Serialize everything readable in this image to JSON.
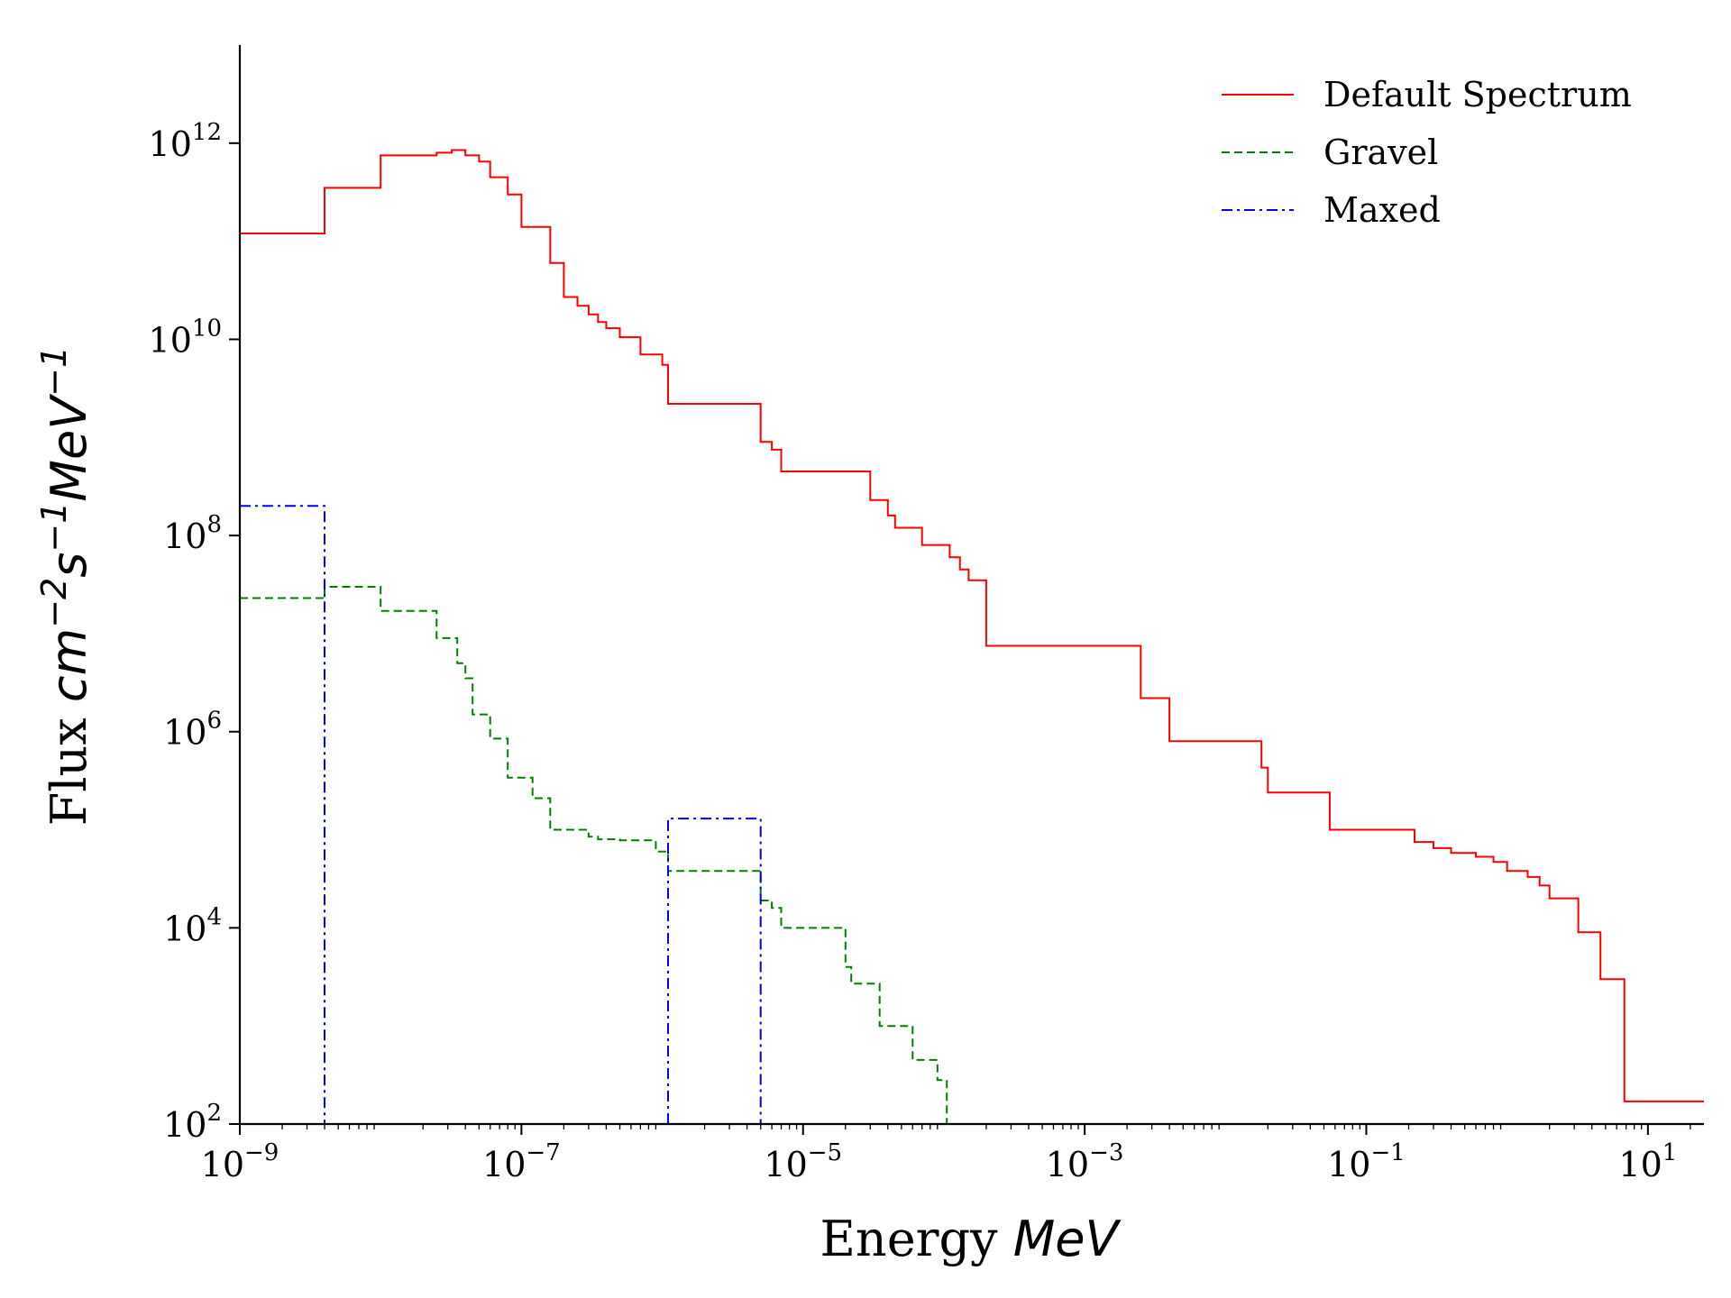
{
  "chart_data": {
    "type": "line",
    "xscale": "log",
    "yscale": "log",
    "xlim": [
      1e-09,
      25
    ],
    "ylim": [
      100,
      10000000000000.0
    ],
    "xlabel": {
      "text": "Energy ",
      "unit": "MeV"
    },
    "ylabel": {
      "text": "Flux ",
      "unit_parts": [
        [
          "cm",
          ""
        ],
        [
          "−2",
          "sup"
        ],
        [
          "s",
          ""
        ],
        [
          "−1",
          "sup"
        ],
        [
          "MeV",
          ""
        ],
        [
          "−1",
          "sup"
        ]
      ]
    },
    "x_ticks": [
      {
        "value": 1e-09,
        "base": "10",
        "exp": "−9"
      },
      {
        "value": 1e-07,
        "base": "10",
        "exp": "−7"
      },
      {
        "value": 1e-05,
        "base": "10",
        "exp": "−5"
      },
      {
        "value": 0.001,
        "base": "10",
        "exp": "−3"
      },
      {
        "value": 0.1,
        "base": "10",
        "exp": "−1"
      },
      {
        "value": 10,
        "base": "10",
        "exp": "1"
      }
    ],
    "y_ticks": [
      {
        "value": 100.0,
        "base": "10",
        "exp": "2"
      },
      {
        "value": 10000.0,
        "base": "10",
        "exp": "4"
      },
      {
        "value": 1000000.0,
        "base": "10",
        "exp": "6"
      },
      {
        "value": 100000000.0,
        "base": "10",
        "exp": "8"
      },
      {
        "value": 10000000000.0,
        "base": "10",
        "exp": "10"
      },
      {
        "value": 1000000000000.0,
        "base": "10",
        "exp": "12"
      }
    ],
    "legend_position": "top-right",
    "series": [
      {
        "name": "Default Spectrum",
        "color": "#ff0000",
        "dash": "solid",
        "points": [
          [
            1e-09,
            120000000000.0
          ],
          [
            4e-09,
            120000000000.0
          ],
          [
            4e-09,
            350000000000.0
          ],
          [
            1e-08,
            350000000000.0
          ],
          [
            1e-08,
            750000000000.0
          ],
          [
            2.5e-08,
            750000000000.0
          ],
          [
            2.5e-08,
            800000000000.0
          ],
          [
            3.2e-08,
            800000000000.0
          ],
          [
            3.2e-08,
            850000000000.0
          ],
          [
            4e-08,
            850000000000.0
          ],
          [
            4e-08,
            750000000000.0
          ],
          [
            5e-08,
            750000000000.0
          ],
          [
            5e-08,
            650000000000.0
          ],
          [
            6e-08,
            650000000000.0
          ],
          [
            6e-08,
            450000000000.0
          ],
          [
            8e-08,
            450000000000.0
          ],
          [
            8e-08,
            300000000000.0
          ],
          [
            1e-07,
            300000000000.0
          ],
          [
            1e-07,
            140000000000.0
          ],
          [
            1.6e-07,
            140000000000.0
          ],
          [
            1.6e-07,
            60000000000.0
          ],
          [
            2e-07,
            60000000000.0
          ],
          [
            2e-07,
            27000000000.0
          ],
          [
            2.5e-07,
            27000000000.0
          ],
          [
            2.5e-07,
            22000000000.0
          ],
          [
            3e-07,
            22000000000.0
          ],
          [
            3e-07,
            18000000000.0
          ],
          [
            3.5e-07,
            18000000000.0
          ],
          [
            3.5e-07,
            15000000000.0
          ],
          [
            4e-07,
            15000000000.0
          ],
          [
            4e-07,
            13000000000.0
          ],
          [
            5e-07,
            13000000000.0
          ],
          [
            5e-07,
            10500000000.0
          ],
          [
            7e-07,
            10500000000.0
          ],
          [
            7e-07,
            7000000000.0
          ],
          [
            1e-06,
            7000000000.0
          ],
          [
            1e-06,
            5500000000.0
          ],
          [
            1.1e-06,
            5500000000.0
          ],
          [
            1.1e-06,
            2200000000.0
          ],
          [
            5e-06,
            2200000000.0
          ],
          [
            5e-06,
            900000000.0
          ],
          [
            6e-06,
            900000000.0
          ],
          [
            6e-06,
            750000000.0
          ],
          [
            7e-06,
            750000000.0
          ],
          [
            7e-06,
            450000000.0
          ],
          [
            3e-05,
            450000000.0
          ],
          [
            3e-05,
            230000000.0
          ],
          [
            4e-05,
            230000000.0
          ],
          [
            4e-05,
            160000000.0
          ],
          [
            4.5e-05,
            160000000.0
          ],
          [
            4.5e-05,
            120000000.0
          ],
          [
            7e-05,
            120000000.0
          ],
          [
            7e-05,
            80000000.0
          ],
          [
            0.00011,
            80000000.0
          ],
          [
            0.00011,
            60000000.0
          ],
          [
            0.00013,
            60000000.0
          ],
          [
            0.00013,
            45000000.0
          ],
          [
            0.00015,
            45000000.0
          ],
          [
            0.00015,
            35000000.0
          ],
          [
            0.0002,
            35000000.0
          ],
          [
            0.0002,
            7500000.0
          ],
          [
            0.0025,
            7500000.0
          ],
          [
            0.0025,
            2200000.0
          ],
          [
            0.004,
            2200000.0
          ],
          [
            0.004,
            800000.0
          ],
          [
            0.018,
            800000.0
          ],
          [
            0.018,
            430000.0
          ],
          [
            0.02,
            430000.0
          ],
          [
            0.02,
            240000.0
          ],
          [
            0.055,
            240000.0
          ],
          [
            0.055,
            100000.0
          ],
          [
            0.22,
            100000.0
          ],
          [
            0.22,
            75000.0
          ],
          [
            0.3,
            75000.0
          ],
          [
            0.3,
            65000.0
          ],
          [
            0.4,
            65000.0
          ],
          [
            0.4,
            58000.0
          ],
          [
            0.6,
            58000.0
          ],
          [
            0.6,
            53000.0
          ],
          [
            0.8,
            53000.0
          ],
          [
            0.8,
            47000.0
          ],
          [
            1.0,
            47000.0
          ],
          [
            1.0,
            38000.0
          ],
          [
            1.4,
            38000.0
          ],
          [
            1.4,
            33000.0
          ],
          [
            1.7,
            33000.0
          ],
          [
            1.7,
            27000.0
          ],
          [
            2,
            27000.0
          ],
          [
            2,
            20000.0
          ],
          [
            3.2,
            20000.0
          ],
          [
            3.2,
            9000.0
          ],
          [
            4.6,
            9000.0
          ],
          [
            4.6,
            3000.0
          ],
          [
            6.8,
            3000.0
          ],
          [
            6.8,
            170
          ],
          [
            25,
            170
          ]
        ]
      },
      {
        "name": "Gravel",
        "color": "#008000",
        "dash": "dashed",
        "points": [
          [
            1e-09,
            23000000.0
          ],
          [
            4e-09,
            23000000.0
          ],
          [
            4e-09,
            30000000.0
          ],
          [
            1e-08,
            30000000.0
          ],
          [
            1e-08,
            17000000.0
          ],
          [
            2.5e-08,
            17000000.0
          ],
          [
            2.5e-08,
            9000000.0
          ],
          [
            3.5e-08,
            9000000.0
          ],
          [
            3.5e-08,
            5000000.0
          ],
          [
            4e-08,
            5000000.0
          ],
          [
            4e-08,
            3500000.0
          ],
          [
            4.5e-08,
            3500000.0
          ],
          [
            4.5e-08,
            1500000.0
          ],
          [
            6e-08,
            1500000.0
          ],
          [
            6e-08,
            850000.0
          ],
          [
            8e-08,
            850000.0
          ],
          [
            8e-08,
            340000.0
          ],
          [
            1.2e-07,
            340000.0
          ],
          [
            1.2e-07,
            210000.0
          ],
          [
            1.6e-07,
            210000.0
          ],
          [
            1.6e-07,
            100000.0
          ],
          [
            3e-07,
            100000.0
          ],
          [
            3e-07,
            85000.0
          ],
          [
            3.5e-07,
            85000.0
          ],
          [
            3.5e-07,
            80000.0
          ],
          [
            5e-07,
            80000.0
          ],
          [
            5e-07,
            78000.0
          ],
          [
            9e-07,
            78000.0
          ],
          [
            9e-07,
            60000.0
          ],
          [
            1.1e-06,
            60000.0
          ],
          [
            1.1e-06,
            38000.0
          ],
          [
            5e-06,
            38000.0
          ],
          [
            5e-06,
            19000.0
          ],
          [
            6e-06,
            19000.0
          ],
          [
            6e-06,
            16000.0
          ],
          [
            7e-06,
            16000.0
          ],
          [
            7e-06,
            10000.0
          ],
          [
            2e-05,
            10000.0
          ],
          [
            2e-05,
            4000.0
          ],
          [
            2.2e-05,
            4000.0
          ],
          [
            2.2e-05,
            2700.0
          ],
          [
            3.5e-05,
            2700.0
          ],
          [
            3.5e-05,
            1000.0
          ],
          [
            6e-05,
            1000.0
          ],
          [
            6e-05,
            450
          ],
          [
            9e-05,
            450
          ],
          [
            9e-05,
            280
          ],
          [
            0.000105,
            280
          ],
          [
            0.000105,
            100
          ]
        ]
      },
      {
        "name": "Maxed",
        "color": "#0000ff",
        "dash": "dashdot",
        "points": [
          [
            1e-09,
            200000000.0
          ],
          [
            4e-09,
            200000000.0
          ],
          [
            4e-09,
            100
          ]
        ],
        "segment2": [
          [
            1.1e-06,
            100
          ],
          [
            1.1e-06,
            130000.0
          ],
          [
            5e-06,
            130000.0
          ],
          [
            5e-06,
            100
          ]
        ]
      }
    ]
  }
}
